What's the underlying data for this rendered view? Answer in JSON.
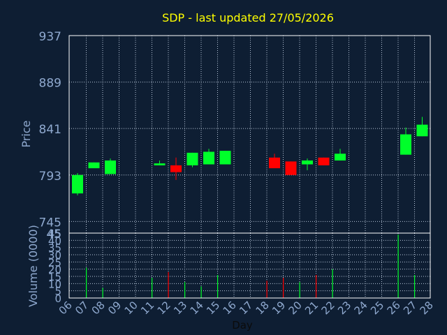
{
  "chart_data": {
    "type": "candlestick",
    "title": "SDP - last updated 27/05/2026",
    "xlabel": "Day",
    "price_axis": {
      "label": "Price",
      "ylim": [
        733,
        937
      ],
      "ticks": [
        793,
        841,
        889,
        937,
        745
      ],
      "top_tick_value": 937,
      "bottom_tick_value": 745
    },
    "volume_axis": {
      "label": "Volume (0000)",
      "ylim": [
        0,
        45
      ],
      "ticks": [
        0,
        5,
        10,
        15,
        20,
        25,
        30,
        35,
        40,
        45
      ]
    },
    "day_ticks": [
      "06",
      "07",
      "08",
      "09",
      "10",
      "11",
      "12",
      "13",
      "14",
      "15",
      "16",
      "17",
      "18",
      "19",
      "20",
      "21",
      "22",
      "23",
      "24",
      "25",
      "26",
      "27",
      "28"
    ],
    "grid": true,
    "colors": {
      "up": "#00ff2a",
      "down": "#ff0000",
      "background": "#0e1e33",
      "axis_text": "#8fa9cf",
      "title": "#ffff00",
      "grid": "#b8c6d9"
    },
    "candles": [
      {
        "day": "06",
        "open": 774,
        "close": 793,
        "high": 795,
        "low": 772
      },
      {
        "day": "07",
        "open": 800,
        "close": 806,
        "high": 806,
        "low": 800
      },
      {
        "day": "08",
        "open": 794,
        "close": 808,
        "high": 810,
        "low": 794
      },
      {
        "day": "11",
        "open": 803,
        "close": 805,
        "high": 808,
        "low": 803
      },
      {
        "day": "12",
        "open": 803,
        "close": 796,
        "high": 811,
        "low": 788
      },
      {
        "day": "13",
        "open": 803,
        "close": 816,
        "high": 816,
        "low": 801
      },
      {
        "day": "14",
        "open": 804,
        "close": 817,
        "high": 820,
        "low": 804
      },
      {
        "day": "15",
        "open": 804,
        "close": 818,
        "high": 818,
        "low": 804
      },
      {
        "day": "18",
        "open": 811,
        "close": 800,
        "high": 815,
        "low": 800
      },
      {
        "day": "19",
        "open": 807,
        "close": 793,
        "high": 807,
        "low": 793
      },
      {
        "day": "20",
        "open": 804,
        "close": 808,
        "high": 810,
        "low": 798
      },
      {
        "day": "21",
        "open": 811,
        "close": 803,
        "high": 811,
        "low": 803
      },
      {
        "day": "22",
        "open": 808,
        "close": 815,
        "high": 820,
        "low": 808
      },
      {
        "day": "26",
        "open": 814,
        "close": 835,
        "high": 842,
        "low": 814
      },
      {
        "day": "27",
        "open": 833,
        "close": 845,
        "high": 853,
        "low": 833
      }
    ],
    "volumes": [
      {
        "day": "07",
        "value": 21,
        "direction": "up"
      },
      {
        "day": "08",
        "value": 7,
        "direction": "up"
      },
      {
        "day": "11",
        "value": 14,
        "direction": "up"
      },
      {
        "day": "12",
        "value": 18,
        "direction": "down"
      },
      {
        "day": "13",
        "value": 11,
        "direction": "up"
      },
      {
        "day": "14",
        "value": 8,
        "direction": "up"
      },
      {
        "day": "15",
        "value": 16,
        "direction": "up"
      },
      {
        "day": "18",
        "value": 12,
        "direction": "down"
      },
      {
        "day": "19",
        "value": 14,
        "direction": "down"
      },
      {
        "day": "20",
        "value": 11,
        "direction": "up"
      },
      {
        "day": "21",
        "value": 16,
        "direction": "down"
      },
      {
        "day": "22",
        "value": 20,
        "direction": "up"
      },
      {
        "day": "26",
        "value": 44,
        "direction": "up"
      },
      {
        "day": "27",
        "value": 16,
        "direction": "up"
      }
    ]
  }
}
